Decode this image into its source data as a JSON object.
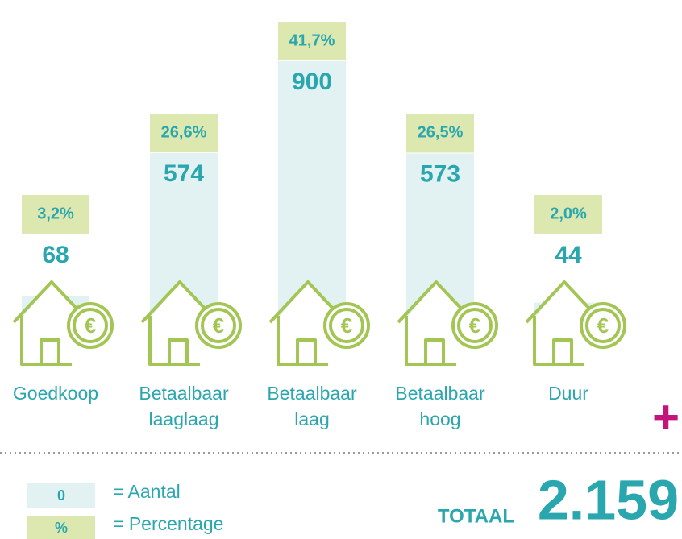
{
  "chart_data": {
    "type": "bar",
    "categories": [
      "Goedkoop",
      "Betaalbaar laaglaag",
      "Betaalbaar laag",
      "Betaalbaar hoog",
      "Duur"
    ],
    "series": [
      {
        "name": "= Aantal",
        "symbol": "0",
        "color": "#e2f1f2",
        "values": [
          68,
          574,
          900,
          573,
          44
        ]
      },
      {
        "name": "= Percentage",
        "symbol": "%",
        "color": "#dde8b0",
        "values": [
          3.2,
          26.6,
          41.7,
          26.5,
          2.0
        ],
        "value_labels": [
          "3,2%",
          "26,6%",
          "41,7%",
          "26,5%",
          "2,0%"
        ]
      }
    ],
    "total": {
      "label": "TOTAAL",
      "value": 2159,
      "value_label": "2.159"
    },
    "plus": "+"
  }
}
